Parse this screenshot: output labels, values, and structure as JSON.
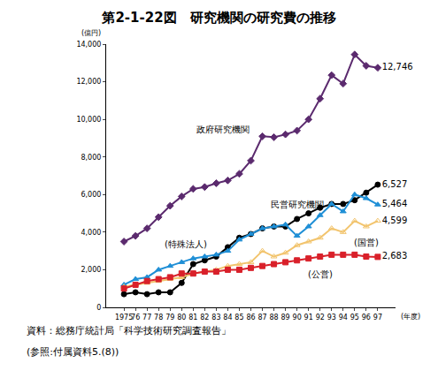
{
  "chart_data": {
    "type": "line",
    "title": "第2-1-22図　研究機関の研究費の推移",
    "x_label": "(年度)",
    "y_label": "(億円)",
    "notes": [
      "資料：総務庁統計局「科学技術研究調査報告」",
      "(参照:付属資料5.(8))"
    ],
    "categories": [
      "1975",
      "76",
      "77",
      "78",
      "79",
      "80",
      "81",
      "82",
      "83",
      "84",
      "85",
      "86",
      "87",
      "88",
      "89",
      "90",
      "91",
      "92",
      "93",
      "94",
      "95",
      "96",
      "97"
    ],
    "series": [
      {
        "name": "政府研究機関",
        "color": "#5b2a6e",
        "marker": "diamond",
        "values": [
          3500,
          3800,
          4200,
          4800,
          5400,
          5900,
          6300,
          6400,
          6600,
          6750,
          7100,
          7800,
          9100,
          9050,
          9200,
          9400,
          10000,
          11100,
          12350,
          11900,
          13450,
          12850,
          12746
        ],
        "value_labels": [
          null,
          null,
          null,
          null,
          null,
          null,
          null,
          null,
          null,
          null,
          null,
          null,
          null,
          null,
          null,
          null,
          null,
          null,
          null,
          null,
          null,
          null,
          "12,746"
        ]
      },
      {
        "name": "民営研究機関",
        "color": "#000000",
        "marker": "circle",
        "values": [
          700,
          800,
          700,
          800,
          800,
          1300,
          2300,
          2500,
          2700,
          3200,
          3700,
          3900,
          4200,
          4300,
          4300,
          4700,
          5000,
          5300,
          5500,
          5500,
          5700,
          6100,
          6527
        ],
        "value_labels": [
          null,
          null,
          null,
          null,
          null,
          null,
          null,
          null,
          null,
          null,
          null,
          null,
          null,
          null,
          null,
          null,
          null,
          null,
          null,
          null,
          null,
          null,
          "6,527"
        ]
      },
      {
        "name": "(特殊法人)",
        "color": "#1f8fd6",
        "marker": "triangle-up",
        "values": [
          1200,
          1500,
          1600,
          2000,
          2200,
          2400,
          2600,
          2700,
          2800,
          3000,
          3600,
          3900,
          4200,
          4300,
          4400,
          3800,
          4300,
          4900,
          5500,
          5100,
          6000,
          5800,
          5464
        ],
        "value_labels": [
          null,
          null,
          null,
          null,
          null,
          null,
          null,
          null,
          null,
          null,
          null,
          null,
          null,
          null,
          null,
          null,
          null,
          null,
          null,
          null,
          null,
          null,
          "5,464"
        ]
      },
      {
        "name": "(国営)",
        "color": "#f2c46d",
        "marker": "triangle-up-open",
        "values": [
          1100,
          1200,
          1300,
          1400,
          1500,
          1600,
          1800,
          1900,
          2000,
          2200,
          2300,
          2400,
          3000,
          2700,
          2900,
          3300,
          3500,
          3700,
          4200,
          4000,
          4600,
          4300,
          4599
        ],
        "value_labels": [
          null,
          null,
          null,
          null,
          null,
          null,
          null,
          null,
          null,
          null,
          null,
          null,
          null,
          null,
          null,
          null,
          null,
          null,
          null,
          null,
          null,
          null,
          "4,599"
        ]
      },
      {
        "name": "(公営)",
        "color": "#d9202a",
        "marker": "square",
        "values": [
          1000,
          1200,
          1400,
          1500,
          1600,
          1800,
          1800,
          1900,
          1900,
          2000,
          2000,
          2100,
          2200,
          2300,
          2400,
          2500,
          2600,
          2700,
          2800,
          2800,
          2800,
          2700,
          2683
        ],
        "value_labels": [
          null,
          null,
          null,
          null,
          null,
          null,
          null,
          null,
          null,
          null,
          null,
          null,
          null,
          null,
          null,
          null,
          null,
          null,
          null,
          null,
          null,
          null,
          "2,683"
        ]
      }
    ],
    "ylim": [
      0,
      14000
    ],
    "yticks": [
      0,
      {
        "value": 2000,
        "label": "2,000"
      },
      {
        "value": 4000,
        "label": "4,000"
      },
      {
        "value": 6000,
        "label": "6,000"
      },
      {
        "value": 8000,
        "label": "8,000"
      },
      {
        "value": 10000,
        "label": "10,000"
      },
      {
        "value": 12000,
        "label": "12,000"
      },
      {
        "value": 14000,
        "label": "14,000"
      }
    ],
    "grid": false,
    "data_labels": true
  }
}
